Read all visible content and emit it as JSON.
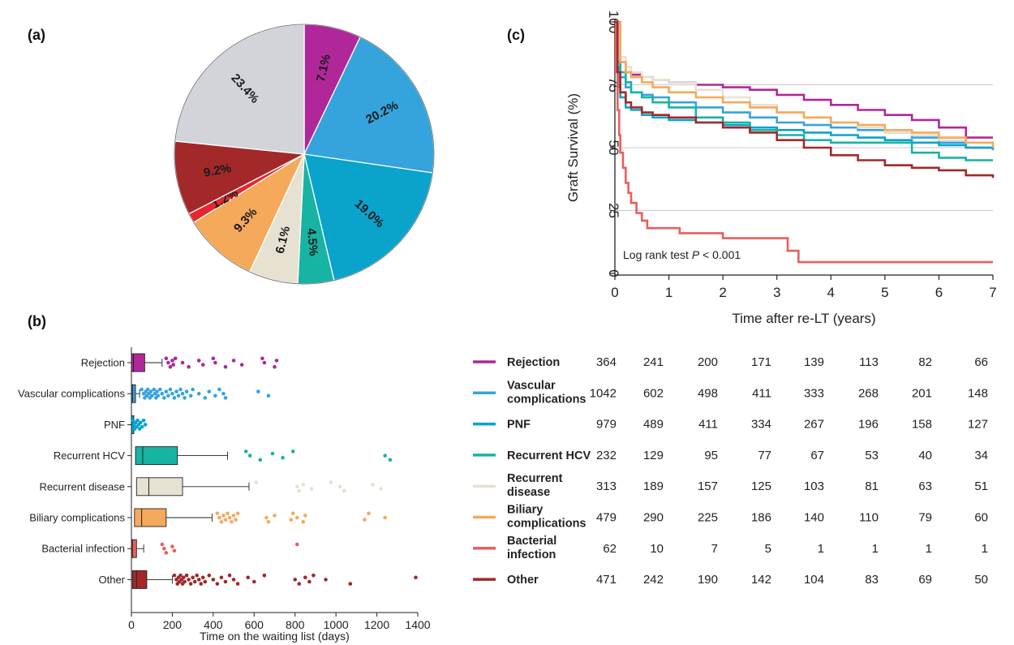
{
  "panels": {
    "a": {
      "label": "(a)"
    },
    "b": {
      "label": "(b)"
    },
    "c": {
      "label": "(c)"
    }
  },
  "categories": [
    "Rejection",
    "Vascular complications",
    "PNF",
    "Recurrent HCV",
    "Recurrent disease",
    "Biliary complications",
    "Bacterial infection",
    "Other"
  ],
  "colors": {
    "Rejection": "#b0279a",
    "Vascular complications": "#35a3dc",
    "PNF": "#0aa3cc",
    "Recurrent HCV": "#17b3a3",
    "Recurrent disease": "#e7e1d2",
    "Biliary complications": "#f4a95b",
    "Bacterial infection": "#ea5e5c",
    "Other": "#a3282a",
    "Unlabeled": "#d2d4d9",
    "SmallRed": "#e8262c"
  },
  "chart_data": [
    {
      "panel": "a",
      "type": "pie",
      "start_angle_deg": 0,
      "direction": "clockwise",
      "slices": [
        {
          "value": 7.1,
          "label": "7.1%",
          "color": "#b0279a"
        },
        {
          "value": 20.2,
          "label": "20.2%",
          "color": "#35a3dc"
        },
        {
          "value": 19.0,
          "label": "19.0%",
          "color": "#0aa3cc"
        },
        {
          "value": 4.5,
          "label": "4.5%",
          "color": "#17b3a3"
        },
        {
          "value": 6.1,
          "label": "6.1%",
          "color": "#e7e1d2"
        },
        {
          "value": 9.3,
          "label": "9.3%",
          "color": "#f4a95b"
        },
        {
          "value": 1.2,
          "label": "1.2%",
          "color": "#e8262c"
        },
        {
          "value": 9.2,
          "label": "9.2%",
          "color": "#a3282a"
        },
        {
          "value": 23.4,
          "label": "23.4%",
          "color": "#d2d4d9"
        }
      ]
    },
    {
      "panel": "b",
      "type": "box",
      "xlabel": "Time on the waiting list (days)",
      "xlim": [
        0,
        1400
      ],
      "xticks": [
        0,
        200,
        400,
        600,
        800,
        1000,
        1200,
        1400
      ],
      "boxes": [
        {
          "name": "Rejection",
          "whisker_low": 0,
          "q1": 0,
          "median": 10,
          "q3": 65,
          "whisker_high": 150,
          "outliers": [
            170,
            180,
            190,
            200,
            205,
            215,
            250,
            280,
            330,
            350,
            400,
            410,
            460,
            500,
            540,
            640,
            650,
            700,
            710
          ]
        },
        {
          "name": "Vascular complications",
          "whisker_low": 0,
          "q1": 0,
          "median": 5,
          "q3": 20,
          "whisker_high": 40,
          "outliers": [
            50,
            60,
            65,
            70,
            75,
            80,
            85,
            90,
            95,
            100,
            110,
            115,
            120,
            125,
            130,
            140,
            150,
            160,
            170,
            180,
            190,
            200,
            210,
            220,
            230,
            240,
            250,
            260,
            270,
            290,
            300,
            330,
            360,
            380,
            410,
            430,
            450,
            460,
            620,
            670
          ]
        },
        {
          "name": "PNF",
          "whisker_low": 0,
          "q1": 0,
          "median": 0,
          "q3": 2,
          "whisker_high": 5,
          "outliers": [
            8,
            12,
            16,
            20,
            25,
            30,
            35,
            40,
            45,
            52,
            60,
            68
          ]
        },
        {
          "name": "Recurrent HCV",
          "whisker_low": 0,
          "q1": 20,
          "median": 55,
          "q3": 225,
          "whisker_high": 470,
          "outliers": [
            560,
            580,
            630,
            690,
            740,
            790,
            1240,
            1265
          ]
        },
        {
          "name": "Recurrent disease",
          "whisker_low": 0,
          "q1": 25,
          "median": 85,
          "q3": 250,
          "whisker_high": 575,
          "outliers": [
            610,
            810,
            820,
            840,
            880,
            975,
            1020,
            1040,
            1180,
            1220
          ]
        },
        {
          "name": "Biliary complications",
          "whisker_low": 0,
          "q1": 15,
          "median": 50,
          "q3": 170,
          "whisker_high": 395,
          "outliers": [
            420,
            430,
            440,
            450,
            460,
            470,
            480,
            490,
            500,
            510,
            520,
            660,
            670,
            700,
            780,
            790,
            810,
            840,
            850,
            1140,
            1160,
            1240
          ]
        },
        {
          "name": "Bacterial infection",
          "whisker_low": 0,
          "q1": 0,
          "median": 5,
          "q3": 25,
          "whisker_high": 60,
          "outliers": [
            150,
            160,
            170,
            200,
            210,
            810
          ]
        },
        {
          "name": "Other",
          "whisker_low": 0,
          "q1": 5,
          "median": 25,
          "q3": 75,
          "whisker_high": 200,
          "outliers": [
            210,
            220,
            225,
            230,
            235,
            240,
            245,
            250,
            255,
            260,
            270,
            280,
            290,
            300,
            310,
            320,
            330,
            340,
            350,
            360,
            380,
            400,
            420,
            440,
            460,
            480,
            500,
            520,
            570,
            600,
            650,
            800,
            820,
            850,
            870,
            890,
            950,
            1070,
            1390
          ]
        }
      ]
    },
    {
      "panel": "c",
      "type": "line",
      "ylabel": "Graft Survival (%)",
      "xlabel": "Time after re-LT (years)",
      "xlim": [
        0,
        7
      ],
      "ylim": [
        0,
        100
      ],
      "xticks": [
        0,
        1,
        2,
        3,
        4,
        5,
        6,
        7
      ],
      "yticks": [
        0,
        25,
        50,
        75,
        100
      ],
      "gridlines_y": [
        25,
        50,
        75
      ],
      "annotation": {
        "text": "Log rank test ",
        "italic": "P",
        "rest": " < 0.001"
      },
      "series": [
        {
          "name": "Rejection",
          "x": [
            0,
            0.1,
            0.2,
            0.3,
            0.5,
            0.7,
            1,
            1.5,
            2,
            2.5,
            3,
            3.5,
            4,
            4.5,
            5,
            5.5,
            6,
            6.5,
            7
          ],
          "y": [
            100,
            84,
            80,
            79,
            78,
            77,
            76,
            75,
            74,
            73,
            71,
            69,
            67,
            65,
            63,
            61,
            58,
            54,
            54
          ]
        },
        {
          "name": "Vascular complications",
          "x": [
            0,
            0.05,
            0.1,
            0.2,
            0.3,
            0.5,
            0.7,
            1,
            1.5,
            2,
            2.5,
            3,
            3.5,
            4,
            4.5,
            5,
            5.5,
            6,
            6.5,
            7
          ],
          "y": [
            100,
            84,
            78,
            74,
            72,
            71,
            70,
            68,
            66,
            64,
            62,
            60,
            59,
            58,
            57,
            56,
            54,
            52,
            50,
            49
          ]
        },
        {
          "name": "PNF",
          "x": [
            0,
            0.03,
            0.06,
            0.1,
            0.2,
            0.3,
            0.5,
            0.7,
            1,
            1.5,
            2,
            2.5,
            3,
            3.5,
            4,
            4.5,
            5,
            5.5,
            6,
            6.5,
            7
          ],
          "y": [
            100,
            82,
            74,
            70,
            66,
            65,
            63,
            62,
            61,
            60,
            59,
            58,
            57,
            56,
            55,
            54,
            53,
            52,
            51,
            50,
            50
          ]
        },
        {
          "name": "Recurrent HCV",
          "x": [
            0,
            0.1,
            0.2,
            0.3,
            0.5,
            0.7,
            1,
            1.5,
            2,
            2.5,
            3,
            3.5,
            4,
            4.5,
            5,
            5.5,
            6,
            6.5,
            7
          ],
          "y": [
            100,
            80,
            76,
            72,
            70,
            68,
            66,
            62,
            60,
            57,
            55,
            53,
            52,
            52,
            52,
            48,
            46,
            45,
            45
          ]
        },
        {
          "name": "Recurrent disease",
          "x": [
            0,
            0.1,
            0.2,
            0.3,
            0.5,
            0.7,
            1,
            1.5,
            2,
            2.5,
            3,
            3.5,
            4,
            4.5,
            5,
            5.5,
            6,
            6.5,
            7
          ],
          "y": [
            100,
            86,
            82,
            80,
            78,
            77,
            76,
            73,
            70,
            67,
            64,
            62,
            60,
            58,
            56,
            55,
            53,
            52,
            51
          ]
        },
        {
          "name": "Biliary complications",
          "x": [
            0,
            0.1,
            0.2,
            0.3,
            0.5,
            0.7,
            1,
            1.5,
            2,
            2.5,
            3,
            3.5,
            4,
            4.5,
            5,
            5.5,
            6,
            6.5,
            7
          ],
          "y": [
            100,
            84,
            80,
            78,
            76,
            74,
            72,
            70,
            68,
            66,
            64,
            62,
            60,
            59,
            57,
            56,
            54,
            52,
            50
          ]
        },
        {
          "name": "Bacterial infection",
          "x": [
            0,
            0.02,
            0.05,
            0.08,
            0.1,
            0.15,
            0.2,
            0.25,
            0.3,
            0.4,
            0.5,
            0.6,
            1.0,
            1.2,
            1.9,
            2.0,
            3.2,
            3.4,
            7.0
          ],
          "y": [
            100,
            80,
            65,
            55,
            48,
            42,
            36,
            32,
            28,
            24,
            21,
            18,
            18,
            16,
            16,
            14,
            9,
            4.5,
            4.5
          ]
        },
        {
          "name": "Other",
          "x": [
            0,
            0.05,
            0.1,
            0.2,
            0.3,
            0.5,
            0.7,
            1,
            1.5,
            2,
            2.5,
            3,
            3.5,
            4,
            4.5,
            5,
            5.5,
            6,
            6.5,
            7
          ],
          "y": [
            100,
            80,
            72,
            68,
            66,
            64,
            63,
            62,
            60,
            58,
            56,
            53,
            50,
            47,
            45,
            43,
            42,
            41,
            39,
            38
          ]
        }
      ]
    }
  ],
  "risk_table": {
    "rows": [
      {
        "label": [
          "Rejection"
        ],
        "values": [
          364,
          241,
          200,
          171,
          139,
          113,
          82,
          66
        ]
      },
      {
        "label": [
          "Vascular",
          "complications"
        ],
        "values": [
          1042,
          602,
          498,
          411,
          333,
          268,
          201,
          148
        ]
      },
      {
        "label": [
          "PNF"
        ],
        "values": [
          979,
          489,
          411,
          334,
          267,
          196,
          158,
          127
        ]
      },
      {
        "label": [
          "Recurrent HCV"
        ],
        "values": [
          232,
          129,
          95,
          77,
          67,
          53,
          40,
          34
        ]
      },
      {
        "label": [
          "Recurrent",
          "disease"
        ],
        "values": [
          313,
          189,
          157,
          125,
          103,
          81,
          63,
          51
        ]
      },
      {
        "label": [
          "Biliary",
          "complications"
        ],
        "values": [
          479,
          290,
          225,
          186,
          140,
          110,
          79,
          60
        ]
      },
      {
        "label": [
          "Bacterial",
          "infection"
        ],
        "values": [
          62,
          10,
          7,
          5,
          1,
          1,
          1,
          1
        ]
      },
      {
        "label": [
          "Other"
        ],
        "values": [
          471,
          242,
          190,
          142,
          104,
          83,
          69,
          50
        ]
      }
    ]
  }
}
